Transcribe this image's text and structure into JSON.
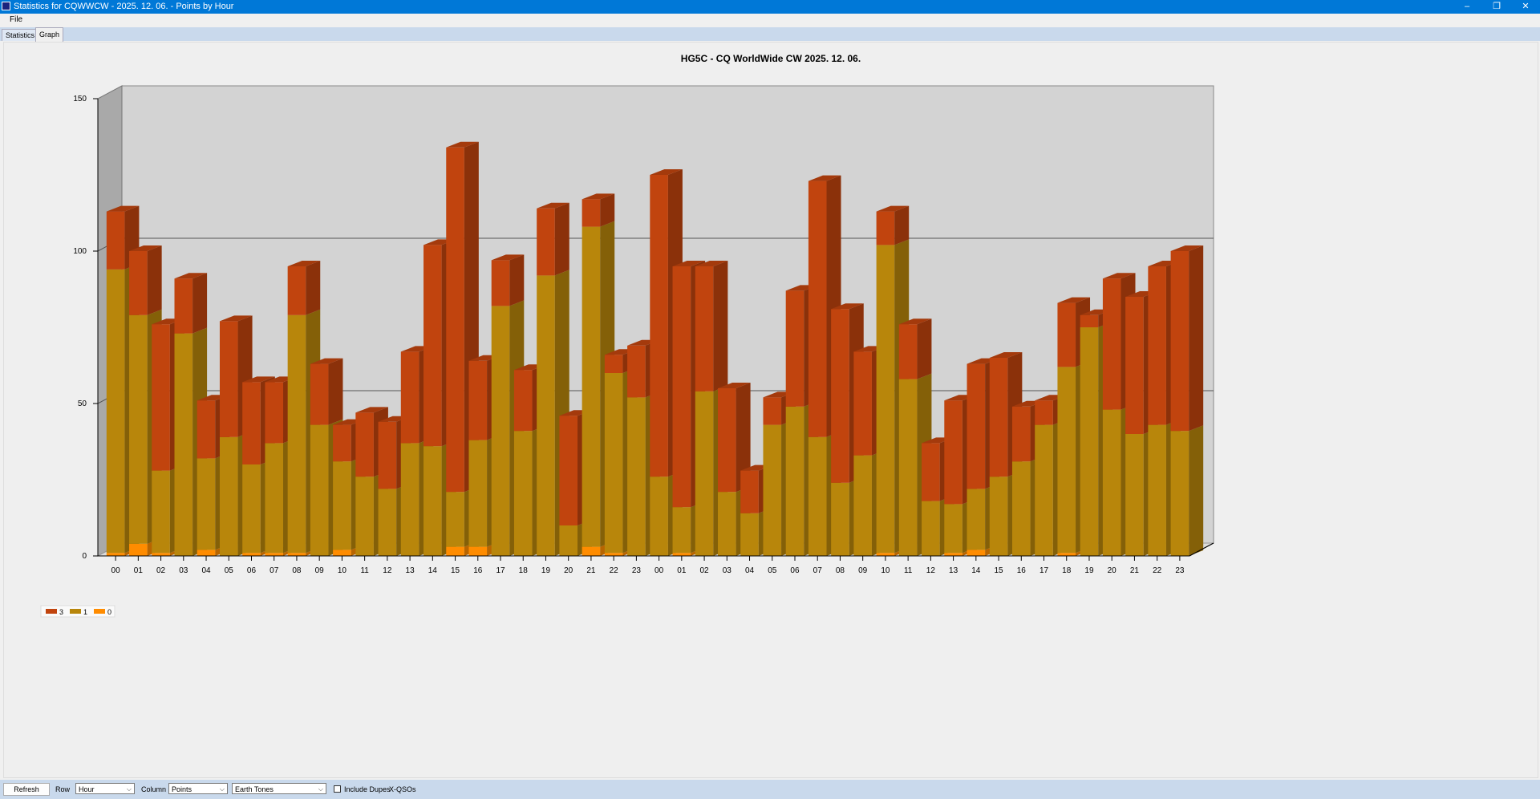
{
  "window": {
    "title": "Statistics for CQWWCW - 2025. 12. 06. - Points by Hour",
    "minimize": "–",
    "restore": "❐",
    "close": "✕"
  },
  "menu": {
    "file": "File"
  },
  "tabs": [
    {
      "label": "Statistics"
    },
    {
      "label": "Graph"
    }
  ],
  "controls": {
    "refresh": "Refresh",
    "row_label": "Row",
    "row_value": "Hour",
    "column_label": "Column",
    "column_value": "Points",
    "palette_value": "Earth Tones",
    "dupes_label": "Include Dupes",
    "xqsos_label": "X-QSOs"
  },
  "colors": {
    "s3": "#c1440e",
    "s1": "#b8860b",
    "s0": "#ff8c00"
  },
  "chart_data": {
    "type": "bar",
    "stacked": true,
    "three_d": true,
    "title": "HG5C - CQ WorldWide CW 2025. 12. 06.",
    "xlabel": "",
    "ylabel": "",
    "ylim": [
      0,
      150
    ],
    "yticks": [
      0,
      50,
      100,
      150
    ],
    "grid": true,
    "legend_position": "bottom-left",
    "categories": [
      "00",
      "01",
      "02",
      "03",
      "04",
      "05",
      "06",
      "07",
      "08",
      "09",
      "10",
      "11",
      "12",
      "13",
      "14",
      "15",
      "16",
      "17",
      "18",
      "19",
      "20",
      "21",
      "22",
      "23",
      "00",
      "01",
      "02",
      "03",
      "04",
      "05",
      "06",
      "07",
      "08",
      "09",
      "10",
      "11",
      "12",
      "13",
      "14",
      "15",
      "16",
      "17",
      "18",
      "19",
      "20",
      "21",
      "22",
      "23"
    ],
    "series": [
      {
        "name": "0",
        "values": [
          1,
          4,
          1,
          0,
          2,
          0,
          1,
          1,
          1,
          0,
          2,
          0,
          0,
          0,
          0,
          3,
          3,
          0,
          0,
          0,
          0,
          3,
          1,
          0,
          0,
          1,
          0,
          0,
          0,
          0,
          0,
          0,
          0,
          0,
          1,
          0,
          0,
          1,
          2,
          0,
          0,
          0,
          1,
          0,
          0,
          0,
          0,
          0
        ]
      },
      {
        "name": "1",
        "values": [
          93,
          75,
          27,
          73,
          30,
          39,
          29,
          36,
          78,
          43,
          29,
          26,
          22,
          37,
          36,
          18,
          35,
          82,
          41,
          92,
          10,
          105,
          59,
          52,
          26,
          15,
          54,
          21,
          14,
          43,
          49,
          39,
          24,
          33,
          101,
          58,
          18,
          16,
          20,
          26,
          31,
          43,
          61,
          75,
          48,
          40,
          43,
          41
        ]
      },
      {
        "name": "3",
        "values": [
          19,
          21,
          48,
          18,
          19,
          38,
          27,
          20,
          16,
          20,
          12,
          21,
          22,
          30,
          66,
          113,
          26,
          15,
          20,
          22,
          36,
          9,
          6,
          17,
          99,
          79,
          41,
          34,
          14,
          9,
          38,
          84,
          57,
          34,
          11,
          18,
          19,
          34,
          41,
          39,
          18,
          8,
          21,
          4,
          43,
          45,
          52,
          59
        ]
      }
    ]
  }
}
